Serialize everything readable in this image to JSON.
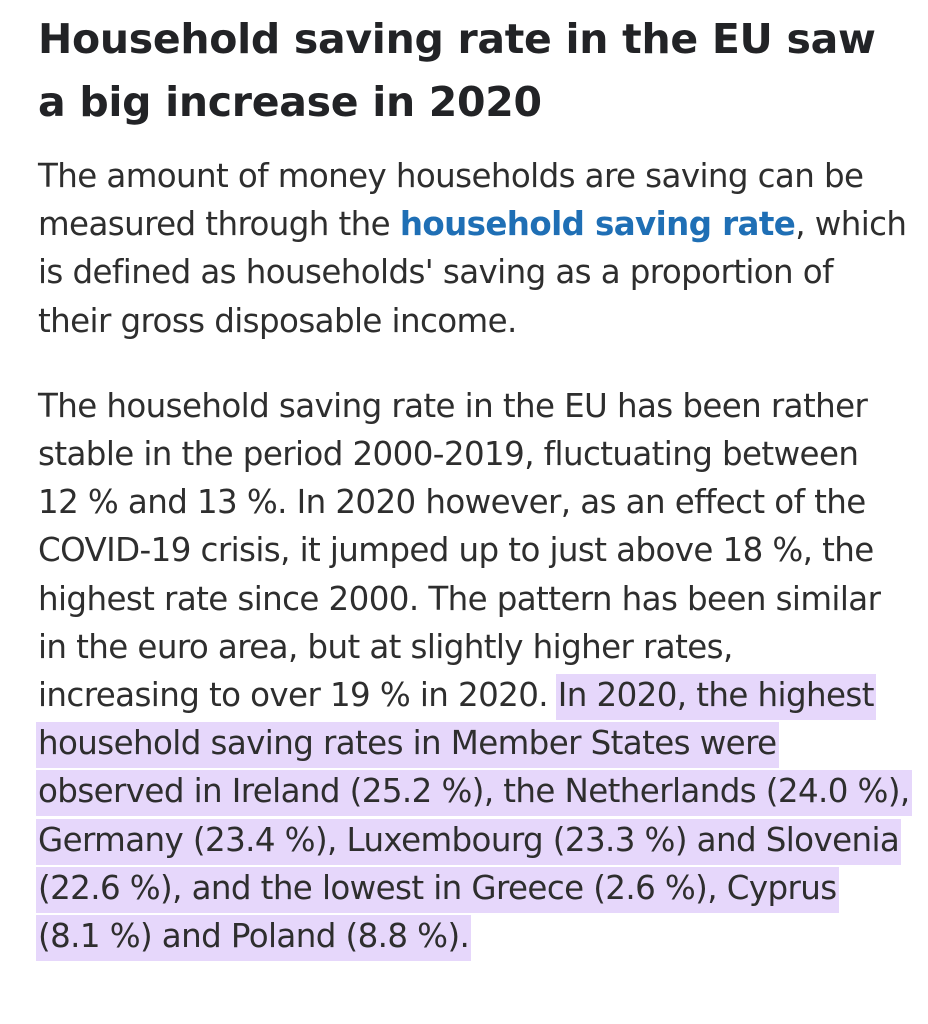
{
  "article": {
    "title_line_1": "Household saving rate in the EU saw",
    "title_line_2": "a big increase in 2020",
    "paragraph_1": {
      "line_1": "The amount of money households are saving can be",
      "line_2_before_link": "measured through the ",
      "link_text": "household saving rate",
      "line_2_after_link": ", which",
      "line_3": "is defined as households' saving as a proportion of",
      "line_4": "their gross disposable income."
    },
    "paragraph_2": {
      "line_1": "The household saving rate in the EU has been rather",
      "line_2": "stable in the period 2000-2019, fluctuating between",
      "line_3": "12 % and 13 %. In 2020 however, as an effect of the",
      "line_4": "COVID-19 crisis, it jumped up to just above 18 %, the",
      "line_5": "highest rate since 2000. The pattern has been similar",
      "line_6": "in the euro area, but at slightly higher rates,",
      "line_7_plain": "increasing to over 19 % in 2020. ",
      "line_7_highlight": "In 2020, the highest",
      "line_8": "household saving rates in Member States were",
      "line_9": "observed in Ireland (25.2 %), the Netherlands (24.0 %),",
      "line_10": "Germany (23.4 %), Luxembourg (23.3 %) and Slovenia",
      "line_11": "(22.6 %), and the lowest in Greece (2.6 %), Cyprus",
      "line_12": "(8.1 %) and Poland (8.8 %)."
    }
  },
  "colors": {
    "link": "#1f6fb5",
    "highlight": "#e6d7fb",
    "text": "#2e2e2e"
  }
}
